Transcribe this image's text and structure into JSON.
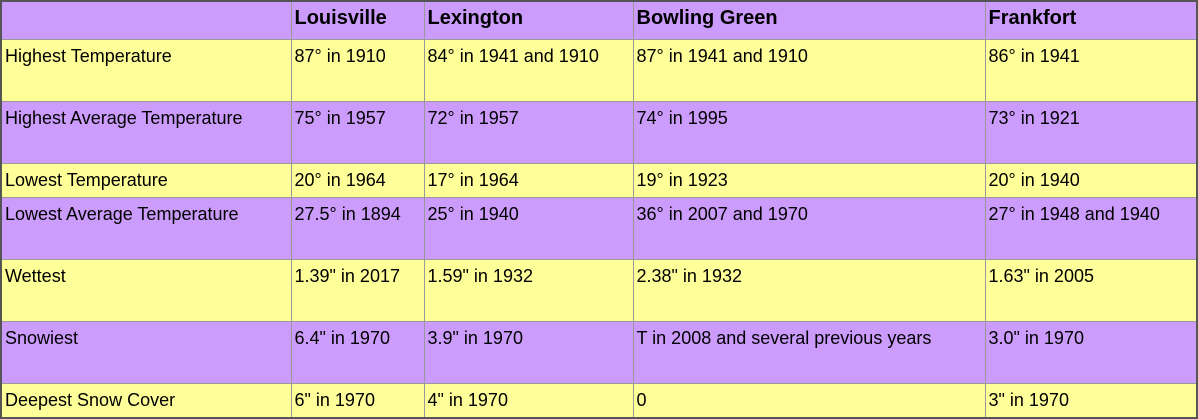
{
  "table": {
    "header": [
      "Louisville",
      "Lexington",
      "Bowling Green",
      "Frankfort"
    ],
    "rows": [
      [
        "Highest Temperature",
        "87° in 1910",
        "84° in 1941 and 1910",
        "87° in 1941 and 1910",
        "86° in 1941"
      ],
      [
        "Highest Average Temperature",
        "75° in 1957",
        "72° in 1957",
        "74° in 1995",
        "73° in 1921"
      ],
      [
        "Lowest Temperature",
        "20° in 1964",
        "17° in 1964",
        "19° in 1923",
        "20° in 1940"
      ],
      [
        "Lowest Average Temperature",
        "27.5° in 1894",
        "25° in 1940",
        "36° in 2007 and 1970",
        "27° in 1948 and 1940"
      ],
      [
        "Wettest",
        "1.39\" in 2017",
        "1.59\" in 1932",
        "2.38\" in 1932",
        "1.63\" in 2005"
      ],
      [
        "Snowiest",
        "6.4\" in 1970",
        "3.9\" in 1970",
        "T in 2008 and several previous years",
        "3.0\" in 1970"
      ],
      [
        "Deepest Snow Cover",
        "6\" in 1970",
        "4\" in 1970",
        "0",
        "3\" in 1970"
      ]
    ]
  }
}
